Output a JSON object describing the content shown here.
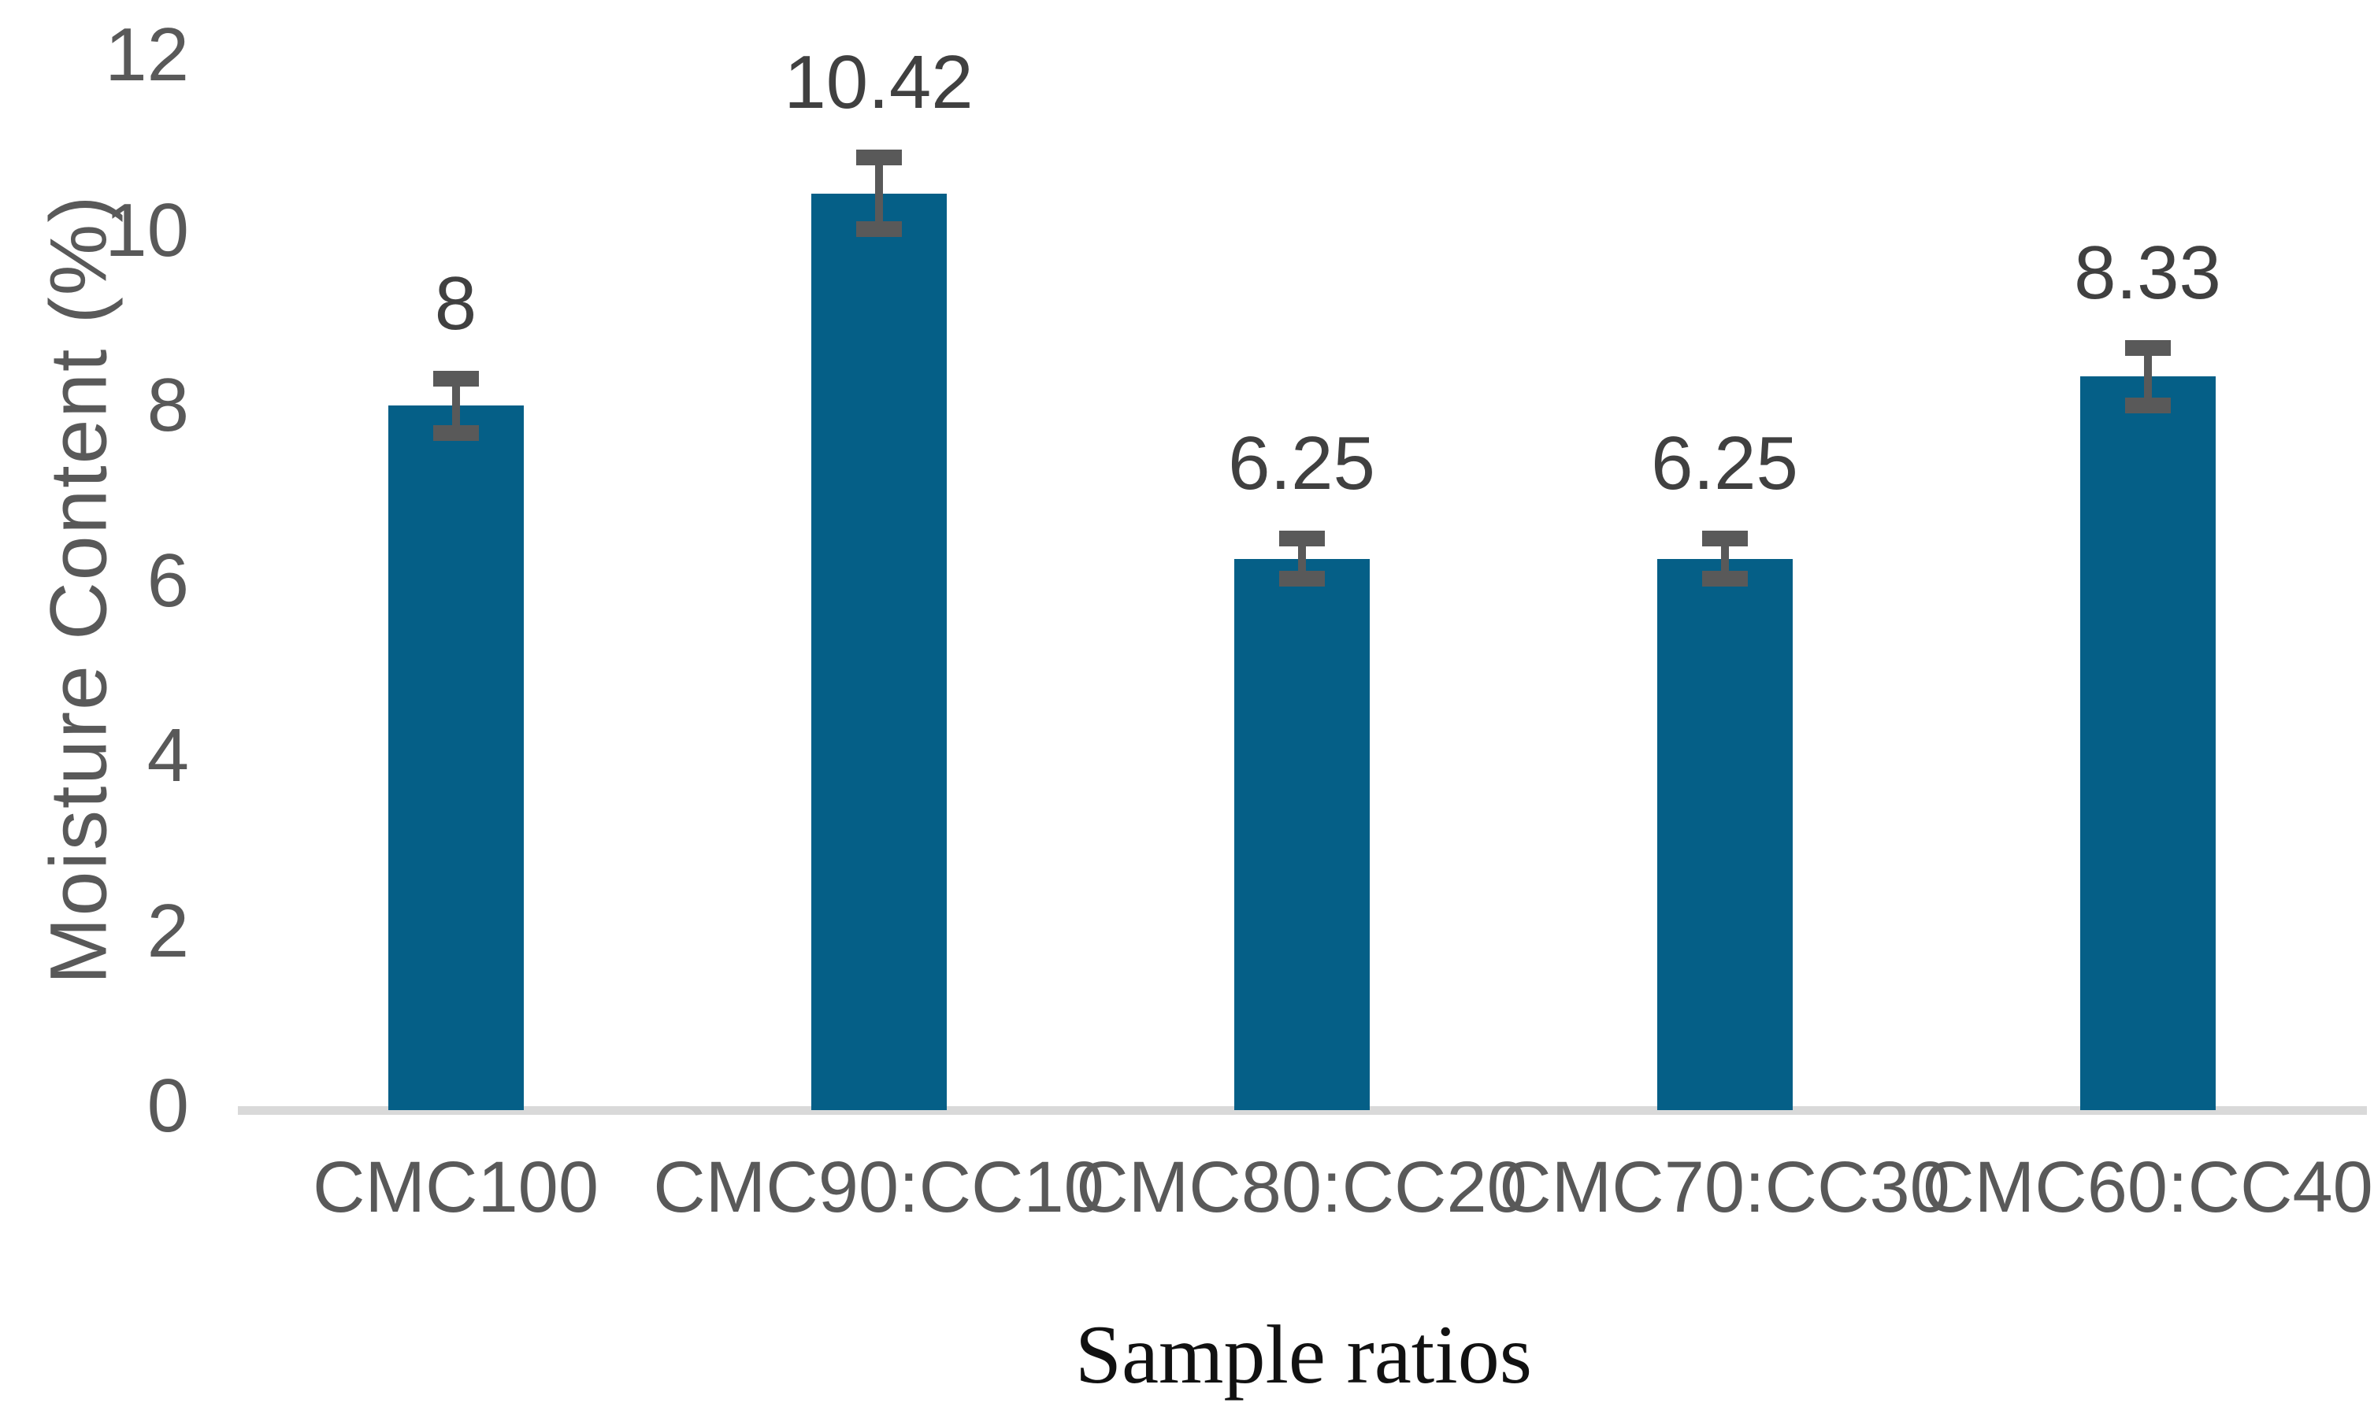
{
  "chart_data": {
    "type": "bar",
    "title": "",
    "xlabel": "Sample ratios",
    "ylabel": "Moisture Content (%)",
    "categories": [
      "CMC100",
      "CMC90:CC10",
      "CMC80:CC20",
      "CMC70:CC30",
      "CMC60:CC40"
    ],
    "values": [
      8,
      10.42,
      6.25,
      6.25,
      8.33
    ],
    "data_labels": [
      "8",
      "10.42",
      "6.25",
      "6.25",
      "8.33"
    ],
    "error_bars": [
      0.4,
      0.5,
      0.32,
      0.32,
      0.42
    ],
    "ylim": [
      0,
      12
    ],
    "yticks": [
      "0",
      "2",
      "4",
      "6",
      "8",
      "10",
      "12"
    ],
    "grid": false,
    "legend": "none",
    "colors": {
      "bar_fill": "#055F87",
      "error_bar": "#595959",
      "axis_baseline": "#D9D9D9",
      "tick_labels": "#595959",
      "category_labels": "#595959",
      "y_axis_title": "#595959",
      "data_labels": "#404040",
      "x_axis_title": "#111111"
    }
  }
}
